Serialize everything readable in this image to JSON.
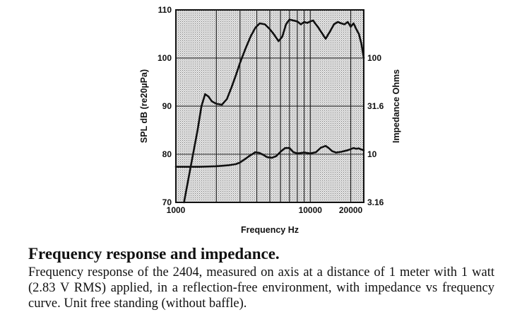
{
  "chart_data": {
    "type": "line",
    "xlabel": "Frequency Hz",
    "ylabel": "SPL dB (re20µPa)",
    "y2label": "Impedance Ohms",
    "xscale": "log",
    "xlim": [
      1000,
      25000
    ],
    "ylim": [
      70,
      110
    ],
    "x_tick_labels": [
      "1000",
      "10000",
      "20000"
    ],
    "x_ticks": [
      1000,
      10000,
      20000
    ],
    "y_ticks": [
      70,
      80,
      90,
      100,
      110
    ],
    "y_tick_labels": [
      "70",
      "80",
      "90",
      "100",
      "110"
    ],
    "y2_ticks": [
      3.16,
      10,
      31.6,
      100
    ],
    "y2_tick_labels": [
      "3.16",
      "10",
      "31.6",
      "100"
    ],
    "y2_scale": "log",
    "y2lim": [
      3.16,
      316
    ],
    "grid": true,
    "background": "stippled",
    "series": [
      {
        "name": "SPL",
        "axis": "left",
        "x": [
          1150,
          1300,
          1450,
          1550,
          1650,
          1750,
          1850,
          2000,
          2200,
          2400,
          2600,
          2800,
          3000,
          3300,
          3600,
          3900,
          4200,
          4600,
          5000,
          5400,
          5800,
          6200,
          6600,
          7000,
          7500,
          8000,
          8500,
          9000,
          9500,
          10000,
          10500,
          11000,
          11500,
          12000,
          13000,
          14000,
          15000,
          16000,
          17000,
          18000,
          19000,
          20000,
          21000,
          22000,
          23000,
          24000,
          25000
        ],
        "y": [
          70,
          78,
          85,
          90,
          92.5,
          92,
          91,
          90.5,
          90.3,
          91.5,
          94,
          96.5,
          99,
          102,
          104.5,
          106.3,
          107.2,
          107,
          106,
          104.8,
          103.5,
          104.5,
          107,
          108,
          107.8,
          107.6,
          107,
          107.5,
          107.3,
          107.6,
          107.8,
          107,
          106.3,
          105.5,
          104,
          105.5,
          107,
          107.5,
          107.2,
          107,
          107.5,
          106.5,
          107.2,
          106,
          105,
          103,
          100
        ]
      },
      {
        "name": "Impedance",
        "axis": "right",
        "x": [
          1000,
          1500,
          2000,
          2500,
          2800,
          3000,
          3300,
          3600,
          3900,
          4200,
          4500,
          4800,
          5200,
          5600,
          6000,
          6500,
          7000,
          7500,
          8000,
          8500,
          9000,
          10000,
          11000,
          12000,
          13000,
          13800,
          14500,
          15500,
          17000,
          19000,
          21000,
          22000,
          23000,
          24000,
          25000
        ],
        "y": [
          7.4,
          7.4,
          7.5,
          7.7,
          7.9,
          8.2,
          9.0,
          9.8,
          10.5,
          10.3,
          9.8,
          9.3,
          9.2,
          9.6,
          10.6,
          11.6,
          11.6,
          10.5,
          10.2,
          10.3,
          10.4,
          10.2,
          10.5,
          11.7,
          12.2,
          11.5,
          10.8,
          10.4,
          10.6,
          11.0,
          11.6,
          11.4,
          11.5,
          11.2,
          11.0
        ]
      }
    ]
  },
  "caption": {
    "title": "Frequency response and impedance.",
    "body": "Frequency response of the 2404, measured on axis at a distance of 1 meter with 1 watt (2.83 V RMS) applied, in a reflection-free environment, with impedance vs frequency curve. Unit free standing (without baffle)."
  },
  "colors": {
    "line": "#111111",
    "grid": "#1a1a1a",
    "stipple_bg": "#e6e6e6",
    "stipple_dot": "#7a7a7a"
  }
}
